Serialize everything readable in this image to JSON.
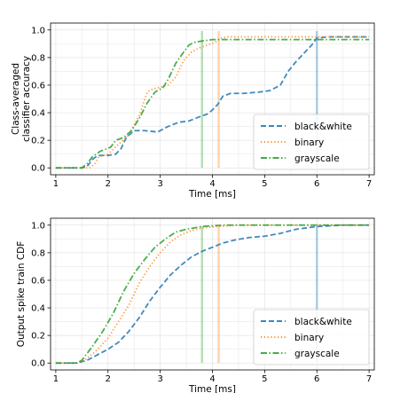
{
  "chart_data": [
    {
      "type": "line",
      "title": "",
      "xlabel": "Time [ms]",
      "ylabel": "Class-averaged classifier accuracy",
      "ylabel_lines": [
        "Class-averaged",
        "classifier accuracy"
      ],
      "xlim": [
        0.9,
        7.1
      ],
      "ylim": [
        -0.05,
        1.05
      ],
      "xticks": [
        1,
        2,
        3,
        4,
        5,
        6,
        7
      ],
      "yticks": [
        0.0,
        0.2,
        0.4,
        0.6,
        0.8,
        1.0
      ],
      "ytick_labels": [
        "0.0",
        "0.2",
        "0.4",
        "0.6",
        "0.8",
        "1.0"
      ],
      "grid": true,
      "legend_position": "bottom-right",
      "series": [
        {
          "name": "black&white",
          "color": "#1f77b4",
          "dash": "dashed",
          "points": [
            [
              1.0,
              0.0
            ],
            [
              1.5,
              0.0
            ],
            [
              1.6,
              0.01
            ],
            [
              1.7,
              0.06
            ],
            [
              1.8,
              0.09
            ],
            [
              2.0,
              0.09
            ],
            [
              2.15,
              0.1
            ],
            [
              2.25,
              0.14
            ],
            [
              2.35,
              0.22
            ],
            [
              2.5,
              0.27
            ],
            [
              2.7,
              0.27
            ],
            [
              2.95,
              0.26
            ],
            [
              3.05,
              0.28
            ],
            [
              3.15,
              0.3
            ],
            [
              3.35,
              0.33
            ],
            [
              3.55,
              0.34
            ],
            [
              3.75,
              0.37
            ],
            [
              3.9,
              0.39
            ],
            [
              4.0,
              0.42
            ],
            [
              4.1,
              0.46
            ],
            [
              4.2,
              0.52
            ],
            [
              4.35,
              0.54
            ],
            [
              4.6,
              0.54
            ],
            [
              4.9,
              0.55
            ],
            [
              5.1,
              0.56
            ],
            [
              5.3,
              0.6
            ],
            [
              5.45,
              0.7
            ],
            [
              5.6,
              0.77
            ],
            [
              5.75,
              0.83
            ],
            [
              5.9,
              0.89
            ],
            [
              6.0,
              0.94
            ],
            [
              6.2,
              0.95
            ],
            [
              7.0,
              0.95
            ]
          ],
          "vline": 6.0
        },
        {
          "name": "binary",
          "color": "#ff7f0e",
          "dash": "dotted",
          "points": [
            [
              1.0,
              0.0
            ],
            [
              1.65,
              0.0
            ],
            [
              1.75,
              0.03
            ],
            [
              1.82,
              0.08
            ],
            [
              2.0,
              0.1
            ],
            [
              2.2,
              0.17
            ],
            [
              2.4,
              0.24
            ],
            [
              2.6,
              0.38
            ],
            [
              2.75,
              0.55
            ],
            [
              2.85,
              0.57
            ],
            [
              3.05,
              0.59
            ],
            [
              3.15,
              0.6
            ],
            [
              3.3,
              0.66
            ],
            [
              3.45,
              0.78
            ],
            [
              3.6,
              0.84
            ],
            [
              3.75,
              0.87
            ],
            [
              3.9,
              0.89
            ],
            [
              4.05,
              0.91
            ],
            [
              4.15,
              0.94
            ],
            [
              4.3,
              0.95
            ],
            [
              7.0,
              0.95
            ]
          ],
          "vline": 4.12
        },
        {
          "name": "grayscale",
          "color": "#2ca02c",
          "dash": "dashdot",
          "points": [
            [
              1.0,
              0.0
            ],
            [
              1.5,
              0.0
            ],
            [
              1.6,
              0.03
            ],
            [
              1.7,
              0.08
            ],
            [
              1.85,
              0.12
            ],
            [
              2.05,
              0.15
            ],
            [
              2.15,
              0.2
            ],
            [
              2.3,
              0.22
            ],
            [
              2.45,
              0.27
            ],
            [
              2.6,
              0.36
            ],
            [
              2.75,
              0.47
            ],
            [
              2.9,
              0.55
            ],
            [
              3.05,
              0.58
            ],
            [
              3.15,
              0.64
            ],
            [
              3.3,
              0.76
            ],
            [
              3.45,
              0.84
            ],
            [
              3.55,
              0.89
            ],
            [
              3.65,
              0.91
            ],
            [
              3.8,
              0.92
            ],
            [
              4.0,
              0.93
            ],
            [
              7.0,
              0.93
            ]
          ],
          "vline": 3.8
        }
      ]
    },
    {
      "type": "line",
      "title": "",
      "xlabel": "Time [ms]",
      "ylabel": "Output spike train CDF",
      "ylabel_lines": [
        "Output spike train CDF"
      ],
      "xlim": [
        0.9,
        7.1
      ],
      "ylim": [
        -0.05,
        1.05
      ],
      "xticks": [
        1,
        2,
        3,
        4,
        5,
        6,
        7
      ],
      "yticks": [
        0.0,
        0.2,
        0.4,
        0.6,
        0.8,
        1.0
      ],
      "ytick_labels": [
        "0.0",
        "0.2",
        "0.4",
        "0.6",
        "0.8",
        "1.0"
      ],
      "grid": true,
      "legend_position": "bottom-right",
      "series": [
        {
          "name": "black&white",
          "color": "#1f77b4",
          "dash": "dashed",
          "points": [
            [
              1.0,
              0.0
            ],
            [
              1.4,
              0.0
            ],
            [
              1.6,
              0.02
            ],
            [
              1.8,
              0.06
            ],
            [
              2.0,
              0.1
            ],
            [
              2.2,
              0.15
            ],
            [
              2.4,
              0.23
            ],
            [
              2.6,
              0.33
            ],
            [
              2.8,
              0.45
            ],
            [
              3.0,
              0.55
            ],
            [
              3.2,
              0.64
            ],
            [
              3.4,
              0.71
            ],
            [
              3.6,
              0.77
            ],
            [
              3.8,
              0.81
            ],
            [
              4.0,
              0.84
            ],
            [
              4.2,
              0.87
            ],
            [
              4.4,
              0.89
            ],
            [
              4.7,
              0.91
            ],
            [
              5.0,
              0.92
            ],
            [
              5.3,
              0.94
            ],
            [
              5.6,
              0.97
            ],
            [
              6.0,
              0.99
            ],
            [
              6.5,
              1.0
            ],
            [
              7.0,
              1.0
            ]
          ],
          "vline": 6.0
        },
        {
          "name": "binary",
          "color": "#ff7f0e",
          "dash": "dotted",
          "points": [
            [
              1.0,
              0.0
            ],
            [
              1.4,
              0.0
            ],
            [
              1.55,
              0.02
            ],
            [
              1.75,
              0.08
            ],
            [
              2.0,
              0.18
            ],
            [
              2.2,
              0.3
            ],
            [
              2.4,
              0.42
            ],
            [
              2.6,
              0.58
            ],
            [
              2.8,
              0.7
            ],
            [
              3.0,
              0.8
            ],
            [
              3.2,
              0.88
            ],
            [
              3.4,
              0.93
            ],
            [
              3.6,
              0.96
            ],
            [
              3.8,
              0.98
            ],
            [
              4.1,
              0.99
            ],
            [
              4.5,
              1.0
            ],
            [
              7.0,
              1.0
            ]
          ],
          "vline": 4.12
        },
        {
          "name": "grayscale",
          "color": "#2ca02c",
          "dash": "dashdot",
          "points": [
            [
              1.0,
              0.0
            ],
            [
              1.4,
              0.0
            ],
            [
              1.5,
              0.02
            ],
            [
              1.7,
              0.12
            ],
            [
              1.9,
              0.23
            ],
            [
              2.1,
              0.36
            ],
            [
              2.3,
              0.52
            ],
            [
              2.5,
              0.65
            ],
            [
              2.7,
              0.75
            ],
            [
              2.9,
              0.84
            ],
            [
              3.1,
              0.9
            ],
            [
              3.3,
              0.95
            ],
            [
              3.5,
              0.97
            ],
            [
              3.8,
              0.99
            ],
            [
              4.2,
              1.0
            ],
            [
              7.0,
              1.0
            ]
          ],
          "vline": 3.8
        }
      ]
    }
  ]
}
